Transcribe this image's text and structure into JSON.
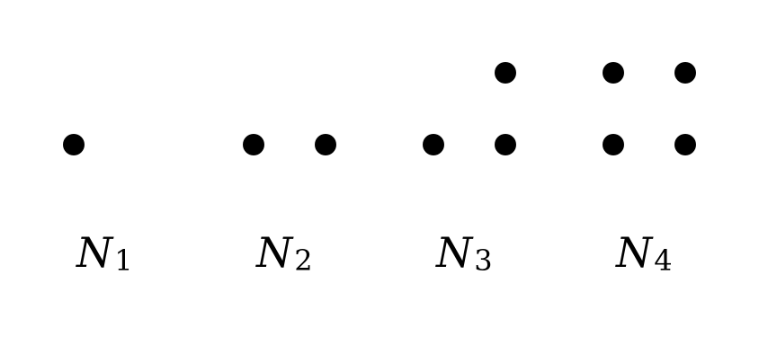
{
  "colors": {
    "background": "#ffffff",
    "dot": "#000000",
    "text": "#000000"
  },
  "figures": [
    {
      "label_main": "N",
      "label_sub": "1",
      "dots": [
        [
          0,
          0
        ]
      ]
    },
    {
      "label_main": "N",
      "label_sub": "2",
      "dots": [
        [
          0,
          0
        ],
        [
          1,
          0
        ]
      ]
    },
    {
      "label_main": "N",
      "label_sub": "3",
      "dots": [
        [
          0,
          0
        ],
        [
          1,
          0
        ],
        [
          1,
          1
        ]
      ]
    },
    {
      "label_main": "N",
      "label_sub": "4",
      "dots": [
        [
          0,
          0
        ],
        [
          1,
          0
        ],
        [
          0,
          1
        ],
        [
          1,
          1
        ]
      ]
    }
  ]
}
